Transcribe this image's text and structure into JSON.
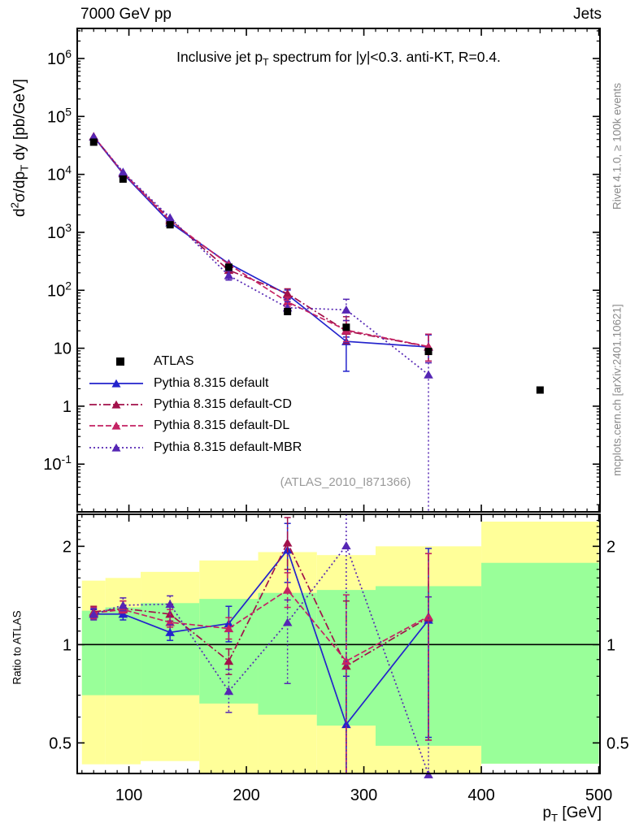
{
  "header": {
    "left": "7000 GeV pp",
    "right": "Jets"
  },
  "title": {
    "pre": "Inclusive jet p",
    "sub": "T",
    "post": " spectrum for |y|<0.3.  anti-KT, R=0.4."
  },
  "side_notes": {
    "top": "Rivet 4.1.0, ≥ 100k events",
    "bottom": "mcplots.cern.ch [arXiv:2401.10621]"
  },
  "watermark": "(ATLAS_2010_I871366)",
  "axes": {
    "ylabel": {
      "p1": "d",
      "p2": "2",
      "p3": "σ/dp",
      "p4": "T",
      "p5": " dy [pb/GeV]"
    },
    "ratio_label": "Ratio to ATLAS",
    "xlabel": {
      "pre": "p",
      "sub": "T",
      "post": " [GeV]"
    }
  },
  "chart_data": {
    "type": "line",
    "title": "Inclusive jet pT spectrum for |y|<0.3. anti-KT, R=0.4.",
    "xlabel": "pT [GeV]",
    "ylabel": "d2sigma/dpT dy [pb/GeV]",
    "ratio_ylabel": "Ratio to ATLAS",
    "x_range": [
      56,
      501
    ],
    "x_ticks": [
      100,
      200,
      300,
      400,
      500
    ],
    "x_minor_step": 10,
    "main_y_log": true,
    "main_y_range": [
      0.015,
      3300000
    ],
    "main_y_tick_exponents": [
      6,
      5,
      4,
      3,
      2,
      1,
      0,
      -1
    ],
    "ratio_y_log": true,
    "ratio_y_range": [
      0.403,
      2.506
    ],
    "ratio_y_ticks": [
      0.5,
      1,
      2
    ],
    "ratio_reference_line": 1,
    "x": [
      70,
      95,
      135,
      185,
      235,
      285,
      355
    ],
    "reference": {
      "name": "ATLAS",
      "color": "#000000",
      "marker": "square",
      "x": [
        70,
        95,
        135,
        185,
        235,
        285,
        355,
        450
      ],
      "values": [
        36000,
        8300,
        1350,
        250,
        43,
        23,
        8.8,
        1.9
      ]
    },
    "series": [
      {
        "name": "Pythia 8.315 default",
        "color": "#2323cc",
        "dash": "solid",
        "marker": "triangle",
        "values": [
          44600,
          10300,
          1470,
          290,
          84,
          13.1,
          10.5
        ],
        "main_err": [
          null,
          null,
          null,
          null,
          [
            70,
            101
          ],
          [
            4.0,
            15.6
          ],
          [
            6,
            17
          ]
        ],
        "ratio": [
          1.24,
          1.24,
          1.09,
          1.16,
          1.95,
          0.57,
          1.19
        ],
        "ratio_err": [
          [
            1.2,
            1.28
          ],
          [
            1.19,
            1.3
          ],
          [
            1.03,
            1.18
          ],
          [
            1.02,
            1.31
          ],
          [
            1.55,
            2.35
          ],
          [
            0.3,
            0.8
          ],
          [
            0.52,
            1.97
          ]
        ]
      },
      {
        "name": "Pythia 8.315 default-CD",
        "color": "#a2114a",
        "dash": "dashdot",
        "marker": "triangle",
        "values": [
          45400,
          10700,
          1670,
          222,
          88,
          19.8,
          10.6
        ],
        "main_err": [
          null,
          null,
          null,
          null,
          [
            73,
            106
          ],
          [
            12,
            35
          ],
          [
            6,
            17.5
          ]
        ],
        "ratio": [
          1.26,
          1.29,
          1.24,
          0.89,
          2.05,
          0.86,
          1.21
        ],
        "ratio_err": [
          [
            1.21,
            1.31
          ],
          [
            1.25,
            1.36
          ],
          [
            1.18,
            1.33
          ],
          [
            0.81,
            0.97
          ],
          [
            1.7,
            2.45
          ],
          [
            0.3,
            1.36
          ],
          [
            0.51,
            1.9
          ]
        ]
      },
      {
        "name": "Pythia 8.315 default-DL",
        "color": "#c42263",
        "dash": "dash",
        "marker": "triangle",
        "values": [
          45000,
          10600,
          1580,
          280,
          63,
          20.5,
          10.7
        ],
        "main_err": [
          null,
          null,
          null,
          null,
          [
            52,
            76
          ],
          [
            13,
            30
          ],
          [
            6,
            17.5
          ]
        ],
        "ratio": [
          1.25,
          1.28,
          1.17,
          1.12,
          1.47,
          0.89,
          1.22
        ],
        "ratio_err": [
          [
            1.2,
            1.3
          ],
          [
            1.25,
            1.36
          ],
          [
            1.13,
            1.28
          ],
          [
            1.04,
            1.21
          ],
          [
            1.3,
            1.66
          ],
          [
            0.3,
            1.42
          ],
          [
            0.51,
            1.9
          ]
        ]
      },
      {
        "name": "Pythia 8.315 default-MBR",
        "color": "#5526b4",
        "dash": "dot",
        "marker": "triangle",
        "values": [
          44600,
          11000,
          1800,
          180,
          50,
          46,
          3.5
        ],
        "main_err": [
          null,
          null,
          null,
          [
            150,
            215
          ],
          [
            38,
            64
          ],
          [
            30,
            70
          ],
          [
            0.012,
            5.6
          ]
        ],
        "ratio": [
          1.24,
          1.32,
          1.33,
          0.72,
          1.17,
          2.01,
          0.4
        ],
        "ratio_err": [
          [
            1.19,
            1.29
          ],
          [
            1.27,
            1.39
          ],
          [
            1.15,
            1.41
          ],
          [
            0.62,
            0.84
          ],
          [
            0.76,
            1.37
          ],
          [
            0.3,
            2.55
          ],
          [
            0.3,
            1.4
          ]
        ]
      }
    ],
    "bands": {
      "green_color": "#99ff99",
      "yellow_color": "#ffff99",
      "bins": [
        [
          60,
          80
        ],
        [
          80,
          110
        ],
        [
          110,
          160
        ],
        [
          160,
          210
        ],
        [
          210,
          260
        ],
        [
          260,
          310
        ],
        [
          310,
          400
        ],
        [
          400,
          500
        ]
      ],
      "green": [
        [
          0.7,
          1.27
        ],
        [
          0.7,
          1.3
        ],
        [
          0.7,
          1.34
        ],
        [
          0.66,
          1.38
        ],
        [
          0.61,
          1.44
        ],
        [
          0.565,
          1.47
        ],
        [
          0.49,
          1.51
        ],
        [
          0.432,
          1.78
        ]
      ],
      "yellow": [
        [
          0.43,
          1.57
        ],
        [
          0.43,
          1.6
        ],
        [
          0.44,
          1.67
        ],
        [
          0.38,
          1.81
        ],
        [
          0.38,
          1.92
        ],
        [
          0.38,
          1.88
        ],
        [
          0.38,
          2.0
        ],
        [
          0.432,
          2.38
        ]
      ]
    },
    "legend_position": "middle-left"
  }
}
